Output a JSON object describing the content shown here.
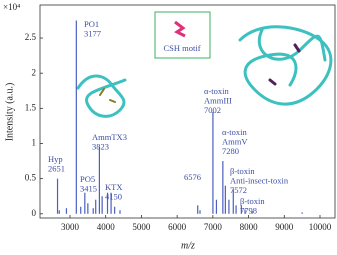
{
  "chart_data": {
    "type": "spectrum",
    "y_label": "Intensity (a.u.)",
    "x_label": "m/z",
    "y_multiplier": "×10⁴",
    "inset_label": "CSH motif",
    "color": "#4a5fc0",
    "x": [
      2651,
      2700,
      2900,
      3177,
      3300,
      3415,
      3500,
      3650,
      3720,
      3823,
      3900,
      4050,
      4150,
      4250,
      4400,
      6576,
      6640,
      7002,
      7100,
      7280,
      7350,
      7450,
      7572,
      7650,
      7798,
      7900,
      8100,
      9500
    ],
    "values": [
      0.5,
      0.05,
      0.08,
      2.75,
      0.1,
      0.3,
      0.15,
      0.08,
      0.2,
      0.95,
      0.25,
      0.3,
      0.3,
      0.1,
      0.05,
      0.12,
      0.05,
      1.45,
      0.2,
      0.75,
      0.4,
      0.2,
      0.35,
      0.12,
      0.12,
      0.06,
      0.04,
      0.02
    ],
    "annotations": [
      {
        "lines": [
          "Hyp",
          "2651"
        ]
      },
      {
        "lines": [
          "PO1",
          "3177"
        ]
      },
      {
        "lines": [
          "PO5",
          "3415"
        ]
      },
      {
        "lines": [
          "AmmTX3",
          "3823"
        ]
      },
      {
        "lines": [
          "KTX",
          "4150"
        ]
      },
      {
        "lines": [
          "6576"
        ]
      },
      {
        "lines": [
          "α-toxin",
          "AmmIII",
          "7002"
        ]
      },
      {
        "lines": [
          "α-toxin",
          "AmmV",
          "7280"
        ]
      },
      {
        "lines": [
          "β-toxin",
          "Anti-insect-toxin",
          "7572"
        ]
      },
      {
        "lines": [
          "β-toxin",
          "7798"
        ]
      }
    ],
    "xlim": [
      2160,
      10420
    ],
    "xticks": [
      3000,
      4000,
      5000,
      6000,
      7000,
      8000,
      9000,
      10000
    ],
    "ylim": [
      -0.06,
      2.97
    ],
    "yticks": [
      0,
      0.5,
      1,
      1.5,
      2,
      2.5
    ]
  }
}
